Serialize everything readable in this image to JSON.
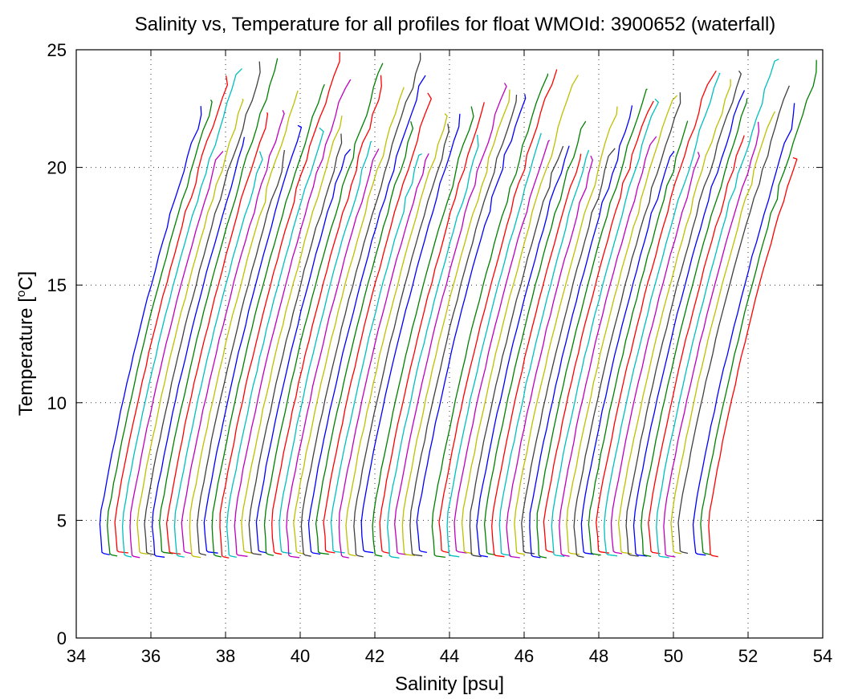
{
  "chart_data": {
    "type": "line",
    "title": "Salinity vs, Temperature for all profiles for float WMOId: 3900652 (waterfall)",
    "xlabel": "Salinity [psu]",
    "ylabel_main": "Temperature [",
    "ylabel_sup": "o",
    "ylabel_end": "C]",
    "xlim": [
      34,
      54
    ],
    "ylim": [
      0,
      25
    ],
    "xticks": [
      34,
      36,
      38,
      40,
      42,
      44,
      46,
      48,
      50,
      52,
      54
    ],
    "yticks": [
      0,
      5,
      10,
      15,
      20,
      25
    ],
    "grid": true,
    "colors": [
      "#0000ff",
      "#008000",
      "#ff0000",
      "#00bfbf",
      "#bf00bf",
      "#bfbf00",
      "#404040"
    ],
    "offset_step_psu": 0.2,
    "profile_start_salinity": [
      34.7,
      34.9,
      35.1,
      35.3,
      35.5,
      35.7,
      35.9,
      36.1,
      36.3,
      36.5,
      36.7,
      36.9,
      37.1,
      37.3,
      37.5,
      37.7,
      37.9,
      38.1,
      38.3,
      38.5,
      38.7,
      38.9,
      39.1,
      39.3,
      39.5,
      39.7,
      39.9,
      40.1,
      40.3,
      40.5,
      40.7,
      40.9,
      41.1,
      41.3,
      41.5,
      41.7,
      42.0,
      42.2,
      42.4,
      42.6,
      42.8,
      43.0,
      43.2,
      43.6,
      43.8,
      44.0,
      44.2,
      44.4,
      44.6,
      44.8,
      45.0,
      45.2,
      45.4,
      45.6,
      45.8,
      46.0,
      46.2,
      46.4,
      46.6,
      46.8,
      47.0,
      47.2,
      47.4,
      47.6,
      47.8,
      48.0,
      48.2,
      48.4,
      48.6,
      48.8,
      49.0,
      49.2,
      49.4,
      49.6,
      49.8,
      50.0,
      50.2,
      50.6,
      50.8,
      51.0
    ]
  }
}
